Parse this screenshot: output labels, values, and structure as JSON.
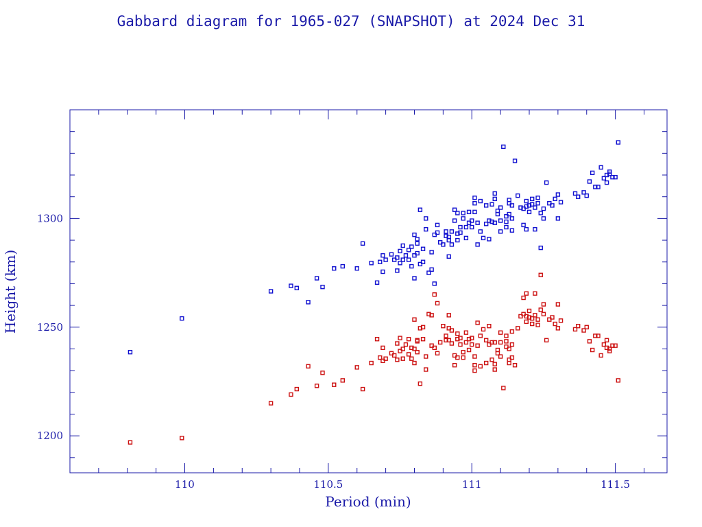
{
  "chart_data": {
    "type": "scatter",
    "title": "Gabbard diagram for 1965-027 (SNAPSHOT) at 2024 Dec 31",
    "xlabel": "Period (min)",
    "ylabel": "Height (km)",
    "xlim": [
      109.6,
      111.68
    ],
    "ylim": [
      1183,
      1350
    ],
    "xticks_major": [
      110,
      110.5,
      111,
      111.5
    ],
    "xtick_labels": [
      "110",
      "110.5",
      "111",
      "111.5"
    ],
    "yticks_major": [
      1200,
      1250,
      1300
    ],
    "ytick_labels": [
      "1200",
      "1250",
      "1300"
    ],
    "xtick_minor_step": 0.1,
    "ytick_minor_step": 10,
    "grid": false,
    "colors": {
      "axes": "#1a1aa8",
      "apogee": "#1010d0",
      "perigee": "#cc1010"
    },
    "series": [
      {
        "role": "apogee",
        "points": [
          [
            109.81,
            1238.5
          ],
          [
            109.99,
            1254
          ],
          [
            110.3,
            1266.5
          ],
          [
            110.37,
            1269
          ],
          [
            110.39,
            1268
          ],
          [
            110.43,
            1261.5
          ],
          [
            110.46,
            1272.5
          ],
          [
            110.48,
            1268.5
          ],
          [
            110.52,
            1277
          ],
          [
            110.55,
            1278
          ],
          [
            110.6,
            1277
          ],
          [
            110.62,
            1288.5
          ],
          [
            110.65,
            1279.5
          ],
          [
            110.67,
            1270.5
          ],
          [
            110.68,
            1280
          ],
          [
            110.69,
            1275.5
          ],
          [
            110.69,
            1283
          ],
          [
            110.7,
            1281
          ],
          [
            110.72,
            1283.5
          ],
          [
            110.73,
            1281
          ],
          [
            110.74,
            1282
          ],
          [
            110.74,
            1276
          ],
          [
            110.75,
            1285
          ],
          [
            110.75,
            1279.5
          ],
          [
            110.76,
            1281
          ],
          [
            110.76,
            1287.5
          ],
          [
            110.77,
            1283
          ],
          [
            110.78,
            1281
          ],
          [
            110.78,
            1285.5
          ],
          [
            110.79,
            1278
          ],
          [
            110.79,
            1287
          ],
          [
            110.8,
            1272.5
          ],
          [
            110.8,
            1283
          ],
          [
            110.8,
            1292.5
          ],
          [
            110.81,
            1284
          ],
          [
            110.81,
            1288.5
          ],
          [
            110.81,
            1290.5
          ],
          [
            110.82,
            1304
          ],
          [
            110.82,
            1279
          ],
          [
            110.83,
            1280
          ],
          [
            110.83,
            1286
          ],
          [
            110.84,
            1300
          ],
          [
            110.84,
            1295
          ],
          [
            110.85,
            1275
          ],
          [
            110.86,
            1276.5
          ],
          [
            110.86,
            1284.5
          ],
          [
            110.87,
            1292.5
          ],
          [
            110.87,
            1270
          ],
          [
            110.88,
            1293.5
          ],
          [
            110.88,
            1297
          ],
          [
            110.89,
            1289
          ],
          [
            110.9,
            1288
          ],
          [
            110.91,
            1292
          ],
          [
            110.91,
            1294
          ],
          [
            110.92,
            1290
          ],
          [
            110.92,
            1282.5
          ],
          [
            110.92,
            1291.5
          ],
          [
            110.93,
            1288
          ],
          [
            110.93,
            1294
          ],
          [
            110.94,
            1299
          ],
          [
            110.94,
            1304
          ],
          [
            110.95,
            1293
          ],
          [
            110.95,
            1290
          ],
          [
            110.95,
            1302.5
          ],
          [
            110.96,
            1293.5
          ],
          [
            110.96,
            1296
          ],
          [
            110.97,
            1302.5
          ],
          [
            110.97,
            1300
          ],
          [
            110.98,
            1291
          ],
          [
            110.98,
            1296
          ],
          [
            110.99,
            1298
          ],
          [
            110.99,
            1303
          ],
          [
            111.0,
            1299
          ],
          [
            111.0,
            1296
          ],
          [
            111.01,
            1307
          ],
          [
            111.01,
            1309.5
          ],
          [
            111.01,
            1303
          ],
          [
            111.02,
            1298
          ],
          [
            111.02,
            1288
          ],
          [
            111.03,
            1294
          ],
          [
            111.03,
            1308
          ],
          [
            111.04,
            1291
          ],
          [
            111.05,
            1297.5
          ],
          [
            111.05,
            1306
          ],
          [
            111.06,
            1299
          ],
          [
            111.06,
            1290.5
          ],
          [
            111.07,
            1298.5
          ],
          [
            111.07,
            1306.5
          ],
          [
            111.08,
            1298
          ],
          [
            111.08,
            1309
          ],
          [
            111.08,
            1311.5
          ],
          [
            111.09,
            1303.5
          ],
          [
            111.09,
            1302
          ],
          [
            111.1,
            1305
          ],
          [
            111.1,
            1294
          ],
          [
            111.1,
            1299
          ],
          [
            111.11,
            1333
          ],
          [
            111.12,
            1296
          ],
          [
            111.12,
            1301
          ],
          [
            111.12,
            1298.5
          ],
          [
            111.13,
            1308.5
          ],
          [
            111.13,
            1307
          ],
          [
            111.13,
            1302
          ],
          [
            111.14,
            1294.5
          ],
          [
            111.14,
            1300
          ],
          [
            111.14,
            1306
          ],
          [
            111.15,
            1326.5
          ],
          [
            111.16,
            1310.5
          ],
          [
            111.17,
            1305
          ],
          [
            111.18,
            1304.5
          ],
          [
            111.18,
            1297
          ],
          [
            111.19,
            1308
          ],
          [
            111.19,
            1305.5
          ],
          [
            111.19,
            1295
          ],
          [
            111.2,
            1306
          ],
          [
            111.2,
            1303
          ],
          [
            111.21,
            1306.5
          ],
          [
            111.21,
            1309
          ],
          [
            111.22,
            1295
          ],
          [
            111.22,
            1305
          ],
          [
            111.23,
            1309.5
          ],
          [
            111.23,
            1307
          ],
          [
            111.24,
            1302.5
          ],
          [
            111.24,
            1286.5
          ],
          [
            111.25,
            1300
          ],
          [
            111.25,
            1304.5
          ],
          [
            111.26,
            1316.5
          ],
          [
            111.27,
            1307
          ],
          [
            111.28,
            1306
          ],
          [
            111.29,
            1309
          ],
          [
            111.3,
            1311
          ],
          [
            111.3,
            1300
          ],
          [
            111.31,
            1307.5
          ],
          [
            111.36,
            1311.5
          ],
          [
            111.37,
            1310
          ],
          [
            111.39,
            1312
          ],
          [
            111.4,
            1310.5
          ],
          [
            111.41,
            1317
          ],
          [
            111.42,
            1321
          ],
          [
            111.43,
            1314.5
          ],
          [
            111.44,
            1314.5
          ],
          [
            111.45,
            1323.5
          ],
          [
            111.46,
            1318.5
          ],
          [
            111.47,
            1316.5
          ],
          [
            111.47,
            1320
          ],
          [
            111.48,
            1321.5
          ],
          [
            111.48,
            1320.5
          ],
          [
            111.49,
            1319
          ],
          [
            111.5,
            1319
          ],
          [
            111.51,
            1335
          ]
        ]
      },
      {
        "role": "perigee",
        "points": [
          [
            109.81,
            1197
          ],
          [
            109.99,
            1199
          ],
          [
            110.3,
            1215
          ],
          [
            110.37,
            1219
          ],
          [
            110.39,
            1221.5
          ],
          [
            110.43,
            1232
          ],
          [
            110.46,
            1223
          ],
          [
            110.48,
            1229
          ],
          [
            110.52,
            1223.5
          ],
          [
            110.55,
            1225.5
          ],
          [
            110.6,
            1231.5
          ],
          [
            110.62,
            1221.5
          ],
          [
            110.65,
            1233.5
          ],
          [
            110.67,
            1244.5
          ],
          [
            110.68,
            1236
          ],
          [
            110.69,
            1240.5
          ],
          [
            110.69,
            1234.5
          ],
          [
            110.7,
            1235.5
          ],
          [
            110.72,
            1238
          ],
          [
            110.73,
            1237
          ],
          [
            110.74,
            1235
          ],
          [
            110.74,
            1242.5
          ],
          [
            110.75,
            1245
          ],
          [
            110.75,
            1239
          ],
          [
            110.76,
            1235.5
          ],
          [
            110.76,
            1240
          ],
          [
            110.77,
            1242
          ],
          [
            110.78,
            1237.5
          ],
          [
            110.78,
            1244.5
          ],
          [
            110.79,
            1240.5
          ],
          [
            110.79,
            1235.5
          ],
          [
            110.8,
            1253.5
          ],
          [
            110.8,
            1240
          ],
          [
            110.8,
            1233.5
          ],
          [
            110.81,
            1244
          ],
          [
            110.81,
            1238.5
          ],
          [
            110.81,
            1243.5
          ],
          [
            110.82,
            1224
          ],
          [
            110.82,
            1249.5
          ],
          [
            110.83,
            1250
          ],
          [
            110.83,
            1244.5
          ],
          [
            110.84,
            1230.5
          ],
          [
            110.84,
            1236.5
          ],
          [
            110.85,
            1256
          ],
          [
            110.86,
            1241.5
          ],
          [
            110.86,
            1255.5
          ],
          [
            110.87,
            1240.5
          ],
          [
            110.87,
            1265
          ],
          [
            110.88,
            1238
          ],
          [
            110.88,
            1261
          ],
          [
            110.89,
            1243
          ],
          [
            110.9,
            1250.5
          ],
          [
            110.91,
            1246
          ],
          [
            110.91,
            1244
          ],
          [
            110.92,
            1249.5
          ],
          [
            110.92,
            1255.5
          ],
          [
            110.92,
            1244
          ],
          [
            110.93,
            1248.5
          ],
          [
            110.93,
            1242.5
          ],
          [
            110.94,
            1237
          ],
          [
            110.94,
            1232.5
          ],
          [
            110.95,
            1244.5
          ],
          [
            110.95,
            1247
          ],
          [
            110.95,
            1236
          ],
          [
            110.96,
            1245
          ],
          [
            110.96,
            1242
          ],
          [
            110.97,
            1236
          ],
          [
            110.97,
            1238.5
          ],
          [
            110.98,
            1247.5
          ],
          [
            110.98,
            1243
          ],
          [
            110.99,
            1244.5
          ],
          [
            110.99,
            1239.5
          ],
          [
            111.0,
            1242
          ],
          [
            111.0,
            1245
          ],
          [
            111.01,
            1232.5
          ],
          [
            111.01,
            1230
          ],
          [
            111.01,
            1236.5
          ],
          [
            111.02,
            1241.5
          ],
          [
            111.02,
            1252
          ],
          [
            111.03,
            1246
          ],
          [
            111.03,
            1232
          ],
          [
            111.04,
            1249
          ],
          [
            111.05,
            1244
          ],
          [
            111.05,
            1233.5
          ],
          [
            111.06,
            1242
          ],
          [
            111.06,
            1250.5
          ],
          [
            111.07,
            1243
          ],
          [
            111.07,
            1235
          ],
          [
            111.08,
            1243
          ],
          [
            111.08,
            1233
          ],
          [
            111.08,
            1230.5
          ],
          [
            111.09,
            1238
          ],
          [
            111.09,
            1239.5
          ],
          [
            111.1,
            1236.5
          ],
          [
            111.1,
            1247.5
          ],
          [
            111.1,
            1243
          ],
          [
            111.11,
            1222
          ],
          [
            111.12,
            1246
          ],
          [
            111.12,
            1241
          ],
          [
            111.12,
            1243.5
          ],
          [
            111.13,
            1233.5
          ],
          [
            111.13,
            1235
          ],
          [
            111.13,
            1240
          ],
          [
            111.14,
            1248
          ],
          [
            111.14,
            1242
          ],
          [
            111.14,
            1236
          ],
          [
            111.15,
            1232.5
          ],
          [
            111.16,
            1249.5
          ],
          [
            111.17,
            1255
          ],
          [
            111.18,
            1256
          ],
          [
            111.18,
            1263.5
          ],
          [
            111.19,
            1252.5
          ],
          [
            111.19,
            1255
          ],
          [
            111.19,
            1265.5
          ],
          [
            111.2,
            1254.5
          ],
          [
            111.2,
            1257.5
          ],
          [
            111.21,
            1254
          ],
          [
            111.21,
            1251.5
          ],
          [
            111.22,
            1265.5
          ],
          [
            111.22,
            1255.5
          ],
          [
            111.23,
            1251
          ],
          [
            111.23,
            1253.5
          ],
          [
            111.24,
            1258
          ],
          [
            111.24,
            1274
          ],
          [
            111.25,
            1260.5
          ],
          [
            111.25,
            1256
          ],
          [
            111.26,
            1244
          ],
          [
            111.27,
            1253.5
          ],
          [
            111.28,
            1254.5
          ],
          [
            111.29,
            1251.5
          ],
          [
            111.3,
            1249.5
          ],
          [
            111.3,
            1260.5
          ],
          [
            111.31,
            1253
          ],
          [
            111.36,
            1249
          ],
          [
            111.37,
            1250.5
          ],
          [
            111.39,
            1248.5
          ],
          [
            111.4,
            1250
          ],
          [
            111.41,
            1243.5
          ],
          [
            111.42,
            1239.5
          ],
          [
            111.43,
            1246
          ],
          [
            111.44,
            1246
          ],
          [
            111.45,
            1237
          ],
          [
            111.46,
            1242
          ],
          [
            111.47,
            1244
          ],
          [
            111.47,
            1240.5
          ],
          [
            111.48,
            1239
          ],
          [
            111.48,
            1240
          ],
          [
            111.49,
            1241.5
          ],
          [
            111.5,
            1241.5
          ],
          [
            111.51,
            1225.5
          ]
        ]
      }
    ]
  }
}
